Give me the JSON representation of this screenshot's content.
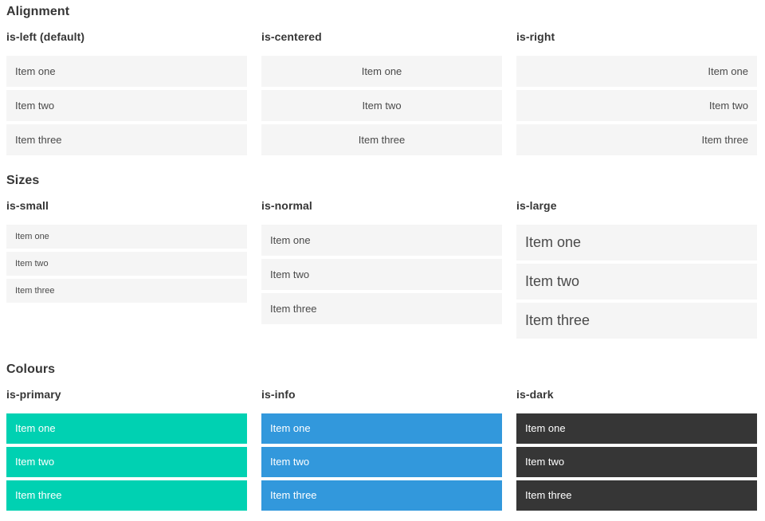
{
  "sections": [
    {
      "title": "Alignment",
      "columns": [
        {
          "heading": "is-left (default)",
          "variant": "is-left",
          "items": [
            "Item one",
            "Item two",
            "Item three"
          ]
        },
        {
          "heading": "is-centered",
          "variant": "is-centered",
          "items": [
            "Item one",
            "Item two",
            "Item three"
          ]
        },
        {
          "heading": "is-right",
          "variant": "is-right",
          "items": [
            "Item one",
            "Item two",
            "Item three"
          ]
        }
      ]
    },
    {
      "title": "Sizes",
      "columns": [
        {
          "heading": "is-small",
          "variant": "is-small",
          "items": [
            "Item one",
            "Item two",
            "Item three"
          ]
        },
        {
          "heading": "is-normal",
          "variant": "is-normal",
          "items": [
            "Item one",
            "Item two",
            "Item three"
          ]
        },
        {
          "heading": "is-large",
          "variant": "is-large",
          "items": [
            "Item one",
            "Item two",
            "Item three"
          ]
        }
      ]
    },
    {
      "title": "Colours",
      "columns": [
        {
          "heading": "is-primary",
          "variant": "is-primary",
          "items": [
            "Item one",
            "Item two",
            "Item three"
          ]
        },
        {
          "heading": "is-info",
          "variant": "is-info",
          "items": [
            "Item one",
            "Item two",
            "Item three"
          ]
        },
        {
          "heading": "is-dark",
          "variant": "is-dark",
          "items": [
            "Item one",
            "Item two",
            "Item three"
          ]
        }
      ]
    }
  ],
  "colors": {
    "primary": "#00d1b2",
    "info": "#3298dc",
    "dark": "#363636",
    "item_bg": "#f5f5f5",
    "item_text": "#4a4a4a",
    "heading_text": "#363636",
    "colored_item_text": "#ffffff",
    "page_bg": "#ffffff"
  }
}
